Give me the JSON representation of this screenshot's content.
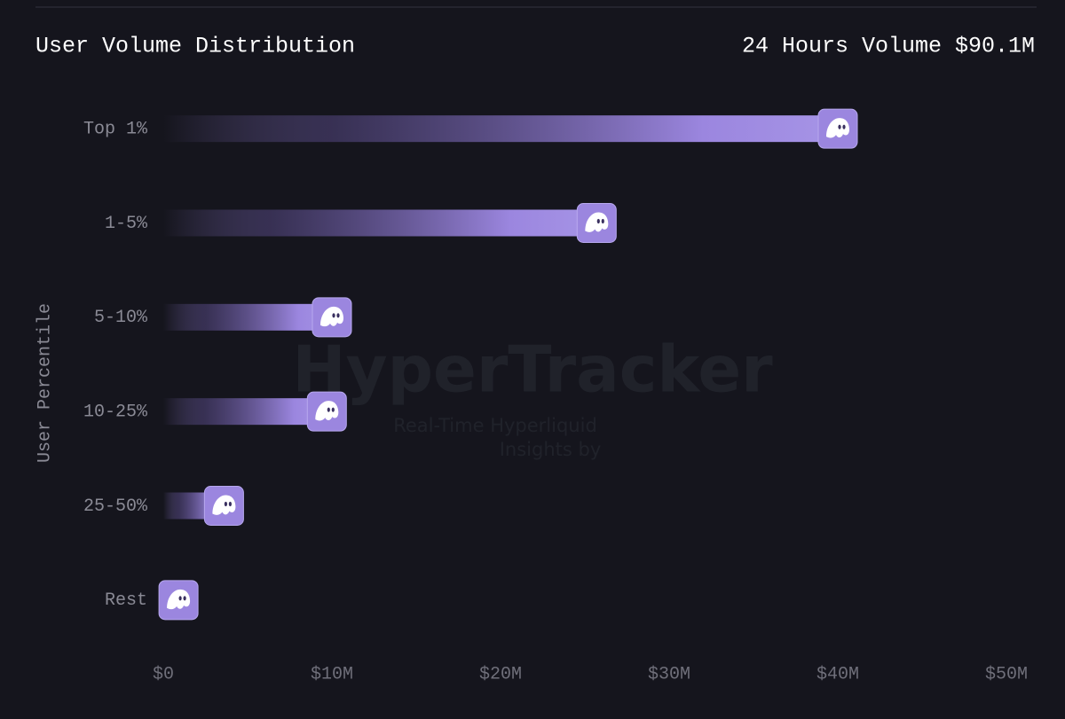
{
  "chart_data": {
    "type": "hbar",
    "title": "User Volume Distribution",
    "subtitle": "24 Hours Volume $90.1M",
    "y_label": "User Percentile",
    "categories": [
      "Top 1%",
      "1-5%",
      "5-10%",
      "10-25%",
      "25-50%",
      "Rest"
    ],
    "values": [
      40,
      25.7,
      10,
      9.7,
      3.6,
      0.9
    ],
    "color": "#9b86df",
    "xlim": [
      0,
      50
    ],
    "xticks": [
      {
        "value": 0,
        "label": "$0"
      },
      {
        "value": 10,
        "label": "$10M"
      },
      {
        "value": 20,
        "label": "$20M"
      },
      {
        "value": 30,
        "label": "$30M"
      },
      {
        "value": 40,
        "label": "$40M"
      },
      {
        "value": 50,
        "label": "$50M"
      }
    ],
    "watermark": {
      "title": "HyperTracker",
      "line1": "Real-Time Hyperliquid",
      "line2": "Insights by"
    }
  }
}
